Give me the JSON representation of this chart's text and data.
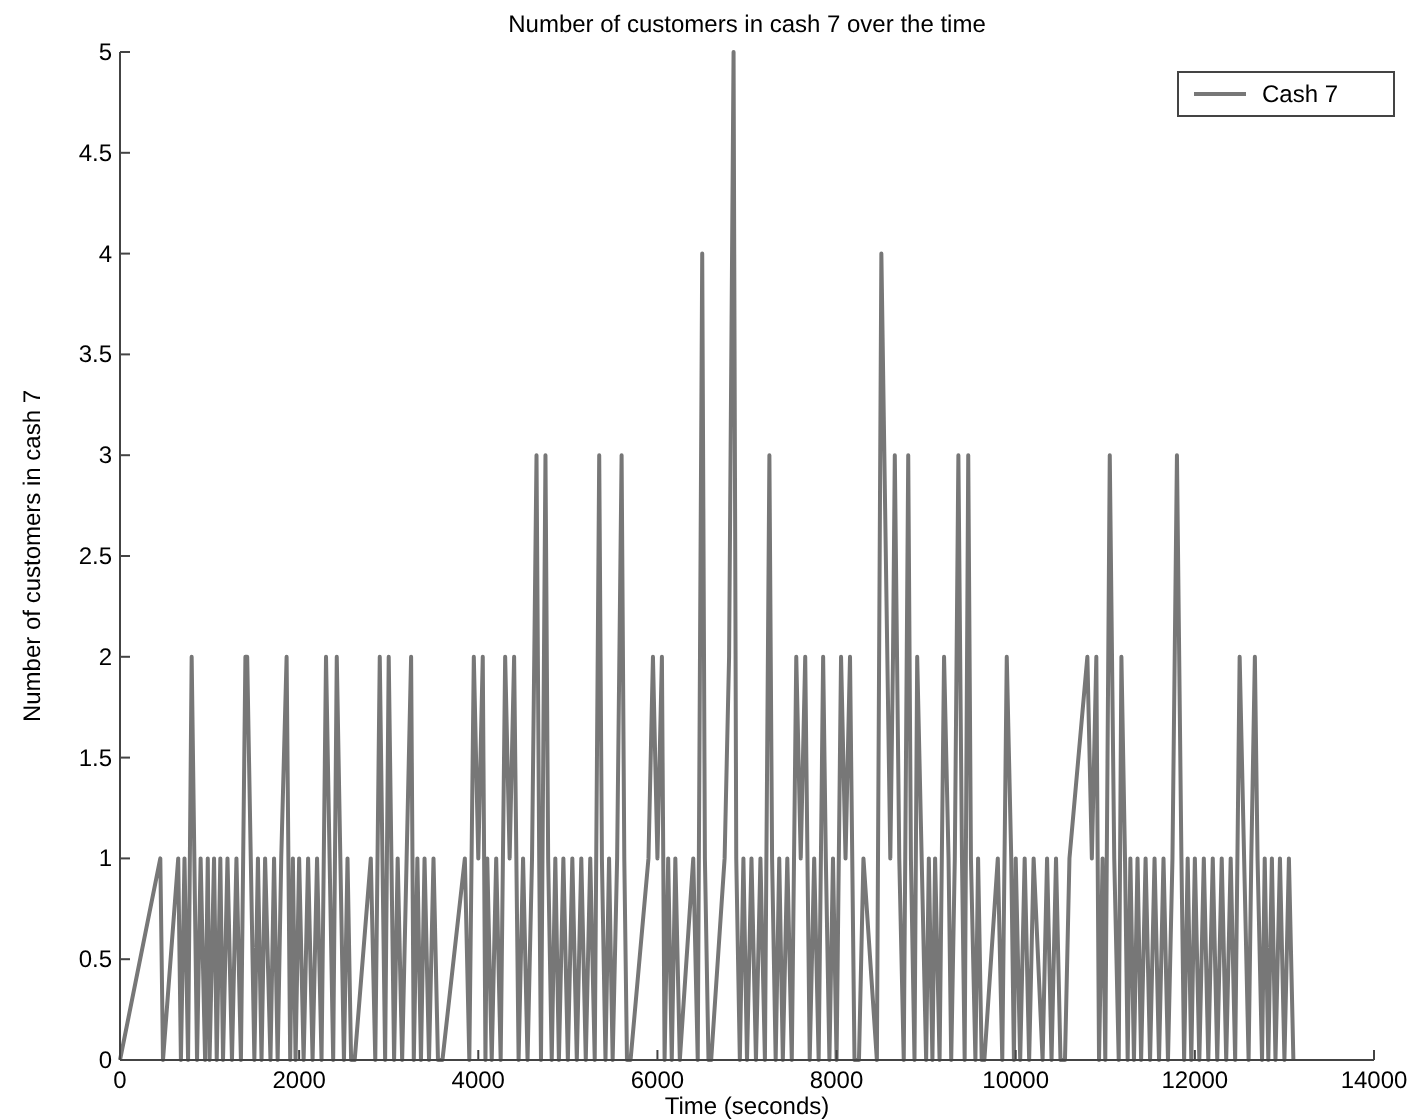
{
  "chart_data": {
    "type": "line",
    "title": "Number of customers in cash 7 over the time",
    "xlabel": "Time (seconds)",
    "ylabel": "Number of customers in cash 7",
    "xlim": [
      0,
      14000
    ],
    "ylim": [
      0,
      5
    ],
    "xticks": [
      0,
      2000,
      4000,
      6000,
      8000,
      10000,
      12000,
      14000
    ],
    "yticks": [
      0,
      0.5,
      1,
      1.5,
      2,
      2.5,
      3,
      3.5,
      4,
      4.5,
      5
    ],
    "grid": false,
    "legend": "top right",
    "line_style": "solid",
    "marker": "none",
    "series": [
      {
        "name": "Cash 7",
        "color": "#777777",
        "x": [
          0,
          450,
          480,
          650,
          680,
          720,
          760,
          800,
          830,
          860,
          900,
          950,
          980,
          1000,
          1050,
          1080,
          1120,
          1150,
          1200,
          1250,
          1300,
          1350,
          1400,
          1420,
          1460,
          1500,
          1540,
          1580,
          1620,
          1680,
          1720,
          1760,
          1800,
          1860,
          1900,
          1930,
          1960,
          2000,
          2050,
          2100,
          2150,
          2200,
          2250,
          2300,
          2340,
          2380,
          2420,
          2460,
          2500,
          2540,
          2580,
          2620,
          2800,
          2850,
          2900,
          2930,
          2960,
          3000,
          3030,
          3060,
          3100,
          3150,
          3200,
          3250,
          3280,
          3320,
          3360,
          3400,
          3450,
          3500,
          3550,
          3600,
          3850,
          3900,
          3950,
          4000,
          4050,
          4080,
          4100,
          4150,
          4200,
          4250,
          4300,
          4350,
          4400,
          4450,
          4500,
          4550,
          4600,
          4650,
          4680,
          4700,
          4750,
          4780,
          4820,
          4860,
          4900,
          4950,
          5000,
          5050,
          5100,
          5150,
          5200,
          5250,
          5300,
          5350,
          5380,
          5420,
          5460,
          5500,
          5550,
          5600,
          5630,
          5660,
          5700,
          5900,
          5950,
          6000,
          6050,
          6080,
          6120,
          6160,
          6200,
          6250,
          6400,
          6450,
          6500,
          6530,
          6570,
          6600,
          6750,
          6800,
          6850,
          6880,
          6920,
          6960,
          7000,
          7050,
          7100,
          7150,
          7200,
          7250,
          7280,
          7320,
          7360,
          7400,
          7450,
          7500,
          7550,
          7600,
          7650,
          7700,
          7750,
          7800,
          7850,
          7880,
          7920,
          7960,
          8000,
          8050,
          8100,
          8150,
          8200,
          8250,
          8300,
          8450,
          8500,
          8600,
          8630,
          8650,
          8700,
          8750,
          8800,
          8830,
          8870,
          8900,
          8950,
          9000,
          9030,
          9070,
          9100,
          9150,
          9200,
          9250,
          9280,
          9320,
          9360,
          9400,
          9430,
          9470,
          9500,
          9550,
          9580,
          9620,
          9650,
          9800,
          9850,
          9900,
          9950,
          9980,
          10000,
          10050,
          10100,
          10150,
          10200,
          10300,
          10350,
          10400,
          10450,
          10500,
          10550,
          10600,
          10800,
          10850,
          10900,
          10930,
          10970,
          11000,
          11050,
          11100,
          11150,
          11180,
          11220,
          11250,
          11280,
          11320,
          11360,
          11400,
          11450,
          11500,
          11550,
          11600,
          11650,
          11700,
          11750,
          11800,
          11850,
          11880,
          11920,
          11960,
          12000,
          12050,
          12100,
          12150,
          12200,
          12250,
          12300,
          12350,
          12400,
          12450,
          12500,
          12550,
          12600,
          12630,
          12670,
          12700,
          12750,
          12780,
          12820,
          12860,
          12900,
          12950,
          13000,
          13050,
          13100
        ],
        "values": [
          0,
          1,
          0,
          1,
          0,
          1,
          0,
          2,
          1,
          0,
          1,
          0,
          1,
          0,
          1,
          0,
          1,
          0,
          1,
          0,
          1,
          0,
          2,
          2,
          1,
          0,
          1,
          0,
          1,
          0,
          1,
          0,
          1,
          2,
          0,
          1,
          0,
          1,
          0,
          1,
          0,
          1,
          0,
          2,
          1,
          0,
          2,
          1,
          0,
          1,
          0,
          0,
          1,
          0,
          2,
          1,
          0,
          2,
          1,
          0,
          1,
          0,
          1,
          2,
          0,
          1,
          0,
          1,
          0,
          1,
          0,
          0,
          1,
          0,
          2,
          1,
          2,
          0,
          1,
          0,
          1,
          0,
          2,
          1,
          2,
          0,
          1,
          0,
          1,
          3,
          1,
          0,
          3,
          1,
          0,
          1,
          0,
          1,
          0,
          1,
          0,
          1,
          0,
          1,
          0,
          3,
          1,
          0,
          1,
          0,
          1,
          3,
          1,
          0,
          0,
          1,
          2,
          1,
          2,
          0,
          1,
          0,
          1,
          0,
          1,
          0,
          4,
          1,
          0,
          0,
          1,
          2,
          5,
          1,
          0,
          1,
          0,
          1,
          0,
          1,
          0,
          3,
          1,
          0,
          1,
          0,
          1,
          0,
          2,
          1,
          2,
          0,
          1,
          0,
          2,
          1,
          0,
          1,
          0,
          2,
          1,
          2,
          0,
          0,
          1,
          0,
          4,
          1,
          2,
          3,
          1,
          0,
          3,
          1,
          0,
          2,
          1,
          0,
          1,
          0,
          1,
          0,
          2,
          1,
          0,
          1,
          3,
          1,
          0,
          3,
          1,
          0,
          1,
          0,
          0,
          1,
          0,
          2,
          1,
          0,
          1,
          0,
          1,
          0,
          1,
          0,
          1,
          0,
          1,
          0,
          0,
          1,
          2,
          1,
          2,
          0,
          1,
          0,
          3,
          1,
          0,
          2,
          1,
          0,
          1,
          0,
          1,
          0,
          1,
          0,
          1,
          0,
          1,
          0,
          1,
          3,
          1,
          0,
          1,
          0,
          1,
          0,
          1,
          0,
          1,
          0,
          1,
          0,
          1,
          0,
          2,
          1,
          0,
          1,
          2,
          1,
          0,
          1,
          0,
          1,
          0,
          1,
          0,
          1,
          0
        ]
      }
    ]
  }
}
